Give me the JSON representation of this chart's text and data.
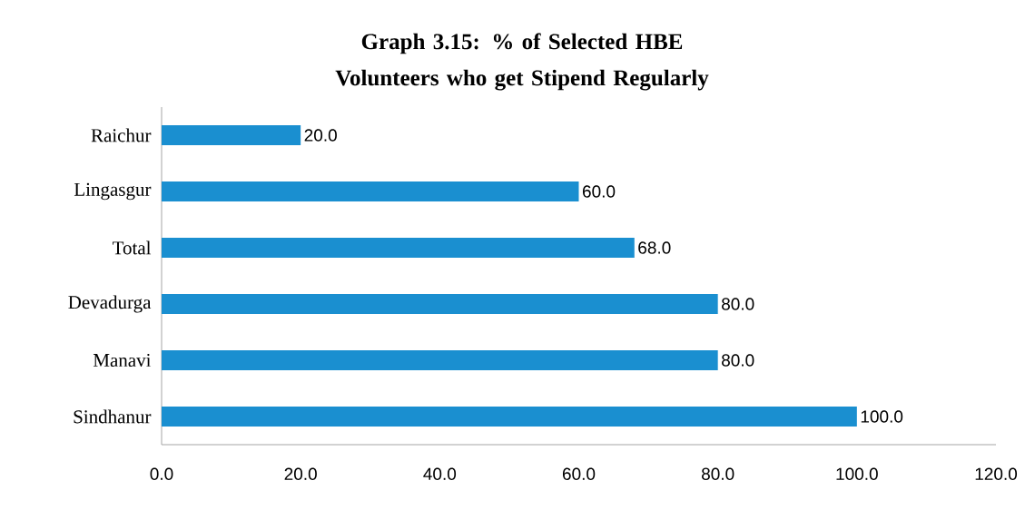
{
  "chart_data": {
    "type": "bar",
    "orientation": "horizontal",
    "title": "Graph 3.15: % of Selected HBE Volunteers who get Stipend Regularly",
    "categories": [
      "Raichur",
      "Lingasgur",
      "Total",
      "Devadurga",
      "Manavi",
      "Sindhanur"
    ],
    "values": [
      20,
      60,
      68,
      80,
      80,
      100
    ],
    "value_labels": [
      "20.0",
      "60.0",
      "68.0",
      "80.0",
      "80.0",
      "100.0"
    ],
    "color": "#1a8fd0",
    "xlim": [
      0,
      120
    ],
    "xticks": [
      {
        "value": 0,
        "label": "0.0"
      },
      {
        "value": 20,
        "label": "20.0"
      },
      {
        "value": 40,
        "label": "40.0"
      },
      {
        "value": 60,
        "label": "60.0"
      },
      {
        "value": 80,
        "label": "80.0"
      },
      {
        "value": 100,
        "label": "100.0"
      },
      {
        "value": 120,
        "label": "120.0"
      }
    ],
    "grid": false
  }
}
